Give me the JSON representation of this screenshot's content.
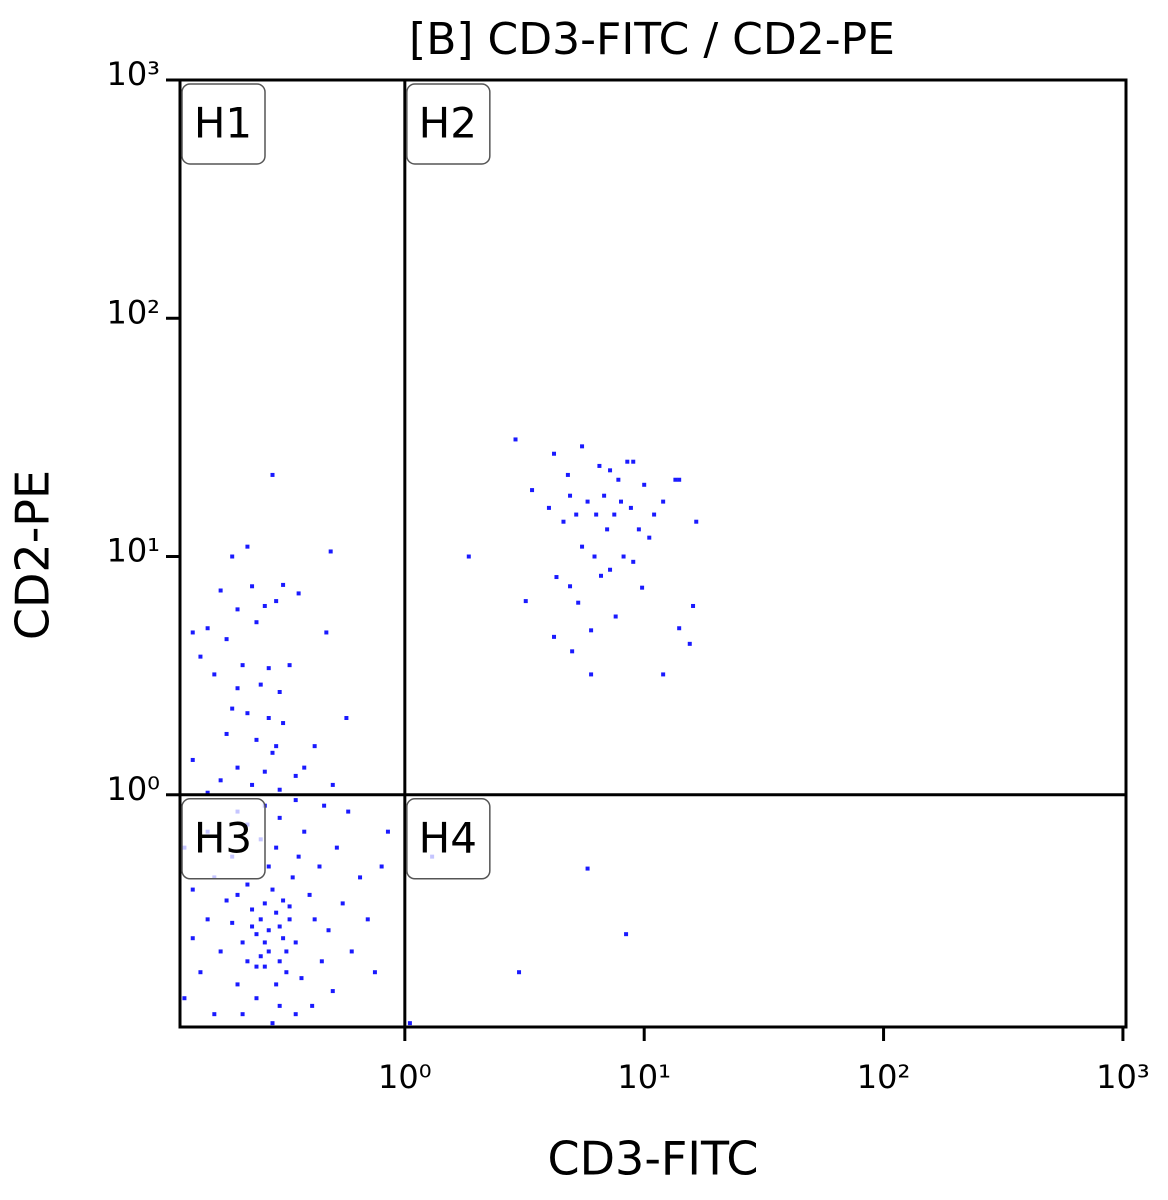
{
  "chart_data": {
    "type": "scatter",
    "title": "[B] CD3-FITC / CD2-PE",
    "x_label": "CD3-FITC",
    "y_label": "CD2-PE",
    "x_log": true,
    "y_log": true,
    "color": "#1a1aff",
    "xlim": [
      0.115,
      1030
    ],
    "ylim": [
      0.106,
      1000
    ],
    "xticks": [
      {
        "value": 1,
        "label": "10⁰"
      },
      {
        "value": 10,
        "label": "10¹"
      },
      {
        "value": 100,
        "label": "10²"
      },
      {
        "value": 1000,
        "label": "10³"
      }
    ],
    "yticks": [
      {
        "value": 1,
        "label": "10⁰"
      },
      {
        "value": 10,
        "label": "10¹"
      },
      {
        "value": 100,
        "label": "10²"
      },
      {
        "value": 1000,
        "label": "10³"
      }
    ],
    "quadrant_gate": {
      "x": 1,
      "y": 1
    },
    "quadrants": [
      "H1",
      "H2",
      "H3",
      "H4"
    ],
    "x": [
      2.9,
      5.5,
      4.2,
      4.8,
      6.5,
      7.2,
      8.5,
      9,
      7.8,
      10,
      13.5,
      14,
      3.4,
      4.9,
      5.8,
      6.8,
      8,
      12,
      4,
      5.2,
      6.3,
      7.5,
      8.8,
      11,
      16.5,
      4.6,
      7,
      9.5,
      10.5,
      5.5,
      6.2,
      8.2,
      9,
      1.85,
      4.3,
      4.9,
      6.6,
      7.2,
      9.8,
      3.2,
      5.3,
      7.6,
      16,
      14,
      4.2,
      6,
      5,
      15.5,
      6,
      12,
      0.28,
      0.22,
      0.19,
      0.49,
      0.17,
      0.23,
      0.31,
      0.29,
      0.36,
      0.2,
      0.26,
      0.15,
      0.13,
      0.18,
      0.24,
      0.47,
      0.14,
      0.21,
      0.27,
      0.33,
      0.16,
      0.2,
      0.25,
      0.3,
      0.19,
      0.22,
      0.27,
      0.31,
      0.57,
      0.18,
      0.24,
      0.29,
      0.42,
      0.13,
      0.2,
      0.26,
      0.35,
      0.17,
      0.23,
      0.3,
      0.5,
      0.15,
      0.38,
      0.28,
      0.25,
      0.27,
      0.3,
      0.22,
      0.32,
      0.26,
      0.29,
      0.24,
      0.33,
      0.21,
      0.28,
      0.31,
      0.23,
      0.35,
      0.19,
      0.26,
      0.3,
      0.24,
      0.37,
      0.2,
      0.34,
      0.27,
      0.22,
      0.4,
      0.18,
      0.29,
      0.36,
      0.25,
      0.42,
      0.17,
      0.15,
      0.14,
      0.13,
      0.12,
      0.16,
      0.45,
      0.48,
      0.5,
      0.44,
      0.38,
      0.22,
      0.3,
      0.26,
      0.19,
      0.16,
      0.13,
      0.12,
      0.55,
      0.6,
      0.52,
      0.65,
      0.7,
      0.75,
      0.8,
      0.85,
      0.58,
      0.46,
      0.35,
      0.2,
      0.15,
      0.21,
      0.28,
      0.35,
      0.41,
      0.32,
      0.25,
      0.29,
      0.23,
      0.27,
      0.31,
      0.26,
      0.24,
      0.3,
      0.33,
      0.2,
      1.05,
      5.8,
      8.4,
      3.0,
      1.3
    ],
    "values": [
      31,
      29,
      27,
      22,
      24,
      23,
      25,
      25,
      21,
      20,
      21,
      21,
      19,
      18,
      17,
      18,
      17,
      17,
      16,
      15,
      15,
      15,
      16,
      15,
      14,
      14,
      13,
      13,
      12,
      11,
      10,
      10,
      9.5,
      10,
      8.2,
      7.5,
      8.3,
      8.8,
      7.4,
      6.5,
      6.4,
      5.6,
      6.2,
      5,
      4.6,
      4.9,
      4,
      4.3,
      3.2,
      3.2,
      22,
      11,
      10,
      10.5,
      7.2,
      7.5,
      7.6,
      6.5,
      7,
      6,
      6.2,
      5,
      4.8,
      4.5,
      5.3,
      4.8,
      3.8,
      3.5,
      3.4,
      3.5,
      3.2,
      2.8,
      2.9,
      2.7,
      2.3,
      2.2,
      2.1,
      2.0,
      2.1,
      1.8,
      1.7,
      1.6,
      1.6,
      1.4,
      1.3,
      1.25,
      1.2,
      1.15,
      1.1,
      1.05,
      1.1,
      1.02,
      1.3,
      1.5,
      0.3,
      0.22,
      0.28,
      0.2,
      0.18,
      0.35,
      0.16,
      0.26,
      0.3,
      0.24,
      0.4,
      0.36,
      0.33,
      0.24,
      0.29,
      0.19,
      0.13,
      0.14,
      0.17,
      0.16,
      0.45,
      0.5,
      0.42,
      0.38,
      0.36,
      0.6,
      0.55,
      0.65,
      0.3,
      0.22,
      0.3,
      0.18,
      0.25,
      0.14,
      0.12,
      0.2,
      0.27,
      0.15,
      0.5,
      0.7,
      0.75,
      0.8,
      0.9,
      0.55,
      0.45,
      0.4,
      0.6,
      0.35,
      0.22,
      0.6,
      0.45,
      0.3,
      0.18,
      0.5,
      0.7,
      0.85,
      0.9,
      0.95,
      0.85,
      0.7,
      0.12,
      0.11,
      0.12,
      0.13,
      0.22,
      0.21,
      0.32,
      0.28,
      0.27,
      0.25,
      0.24,
      0.19,
      0.2,
      0.34,
      0.38,
      0.11,
      0.49,
      0.26,
      0.18,
      0.55
    ]
  }
}
